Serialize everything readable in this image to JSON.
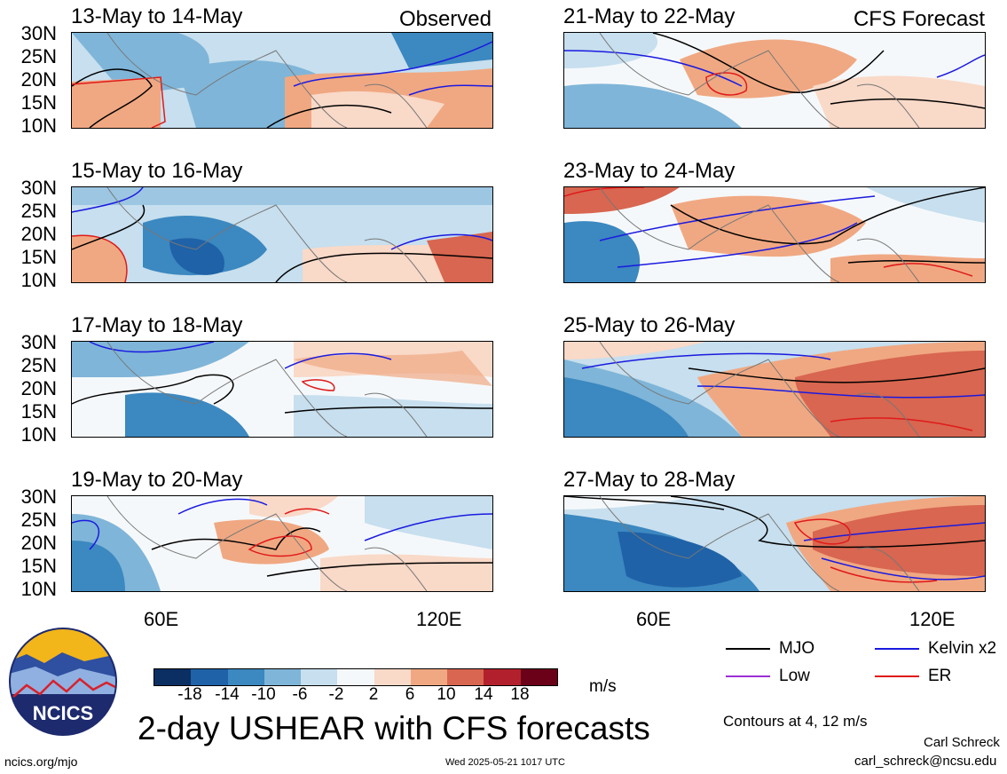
{
  "panels": [
    {
      "id": "p1",
      "title": "13-May to 14-May",
      "tag": "Observed"
    },
    {
      "id": "p2",
      "title": "21-May to 22-May",
      "tag": "CFS Forecast"
    },
    {
      "id": "p3",
      "title": "15-May to 16-May",
      "tag": ""
    },
    {
      "id": "p4",
      "title": "23-May to 24-May",
      "tag": ""
    },
    {
      "id": "p5",
      "title": "17-May to 18-May",
      "tag": ""
    },
    {
      "id": "p6",
      "title": "25-May to 26-May",
      "tag": ""
    },
    {
      "id": "p7",
      "title": "19-May to 20-May",
      "tag": ""
    },
    {
      "id": "p8",
      "title": "27-May to 28-May",
      "tag": ""
    }
  ],
  "lat_labels": [
    "30N",
    "25N",
    "20N",
    "15N",
    "10N"
  ],
  "lon_labels": [
    "60E",
    "120E"
  ],
  "colorbar": {
    "colors": [
      "#0b2f63",
      "#1f62a8",
      "#3c88c0",
      "#7fb5d8",
      "#c7dfee",
      "#f5f8fa",
      "#f9d9c8",
      "#f0a882",
      "#d86650",
      "#b3202d",
      "#6b0019"
    ],
    "tick_labels": [
      "-18",
      "-14",
      "-10",
      "-6",
      "-2",
      "2",
      "6",
      "10",
      "14",
      "18"
    ],
    "units": "m/s"
  },
  "legend": [
    {
      "label": "MJO",
      "color": "#000000"
    },
    {
      "label": "Kelvin x2",
      "color": "#1a1ae0"
    },
    {
      "label": "Low",
      "color": "#9c2fd6"
    },
    {
      "label": "ER",
      "color": "#e01a1a"
    }
  ],
  "contour_note": "Contours at 4, 12 m/s",
  "title": "2-day USHEAR with CFS forecasts",
  "logo_text": "NCICS",
  "footer": {
    "url": "ncics.org/mjo",
    "timestamp": "Wed 2025-05-21 1017 UTC",
    "author": "Carl Schreck",
    "email": "carl_schreck@ncsu.edu"
  }
}
